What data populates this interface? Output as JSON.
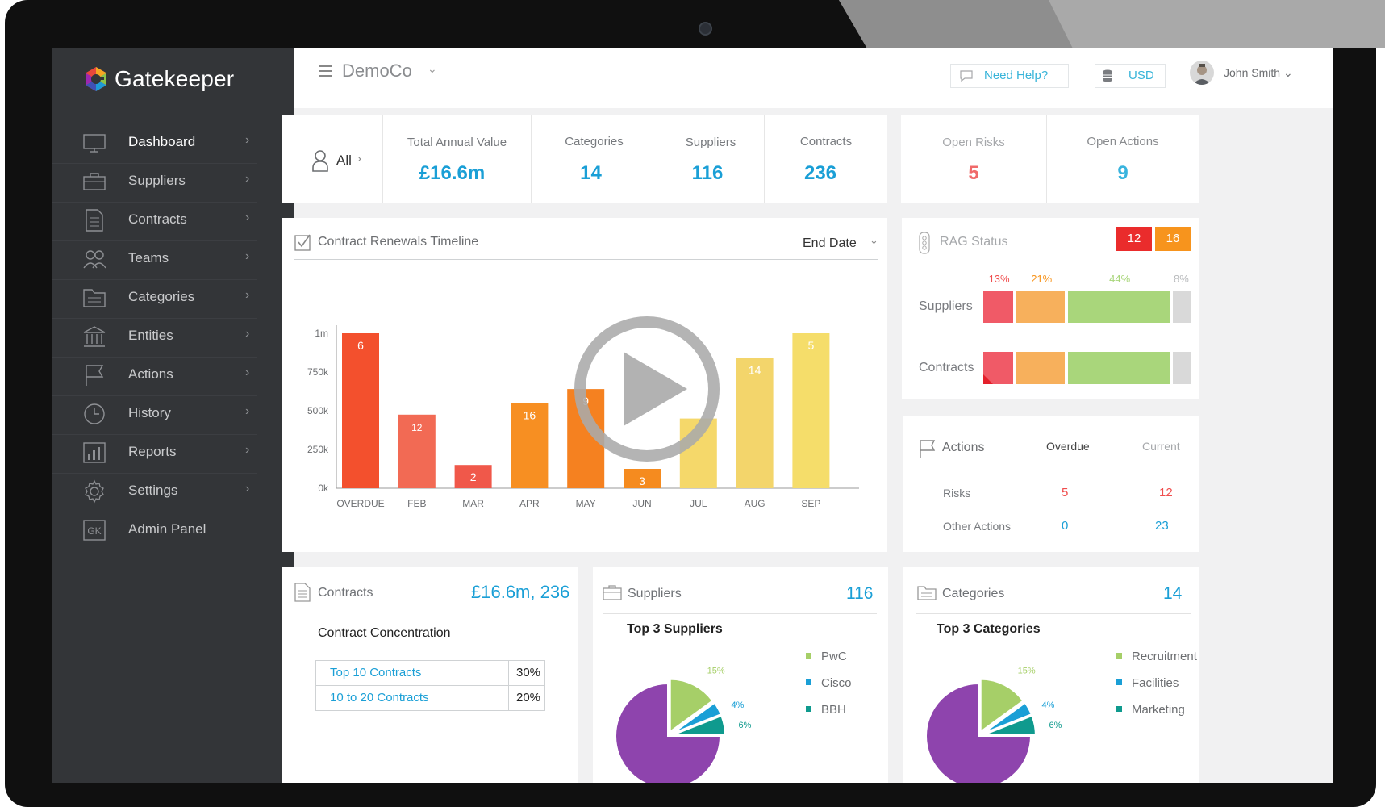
{
  "brand": {
    "name": "Gatekeeper"
  },
  "sidebar": {
    "items": [
      {
        "label": "Dashboard",
        "icon": "monitor-icon",
        "active": true,
        "chevron": "›"
      },
      {
        "label": "Suppliers",
        "icon": "briefcase-icon",
        "chevron": "›"
      },
      {
        "label": "Contracts",
        "icon": "document-icon",
        "chevron": "›"
      },
      {
        "label": "Teams",
        "icon": "users-icon",
        "chevron": "›"
      },
      {
        "label": "Categories",
        "icon": "folder-icon",
        "chevron": "›"
      },
      {
        "label": "Entities",
        "icon": "bank-icon",
        "chevron": "›"
      },
      {
        "label": "Actions",
        "icon": "flag-icon",
        "chevron": "›"
      },
      {
        "label": "History",
        "icon": "clock-icon",
        "chevron": "›"
      },
      {
        "label": "Reports",
        "icon": "bar-chart-icon",
        "chevron": "›"
      },
      {
        "label": "Settings",
        "icon": "gear-icon",
        "chevron": "›"
      },
      {
        "label": "Admin Panel",
        "icon": "gk-badge-icon",
        "badge": "GK"
      }
    ]
  },
  "header": {
    "company": "DemoCo",
    "company_chevron": "⌄",
    "help": "Need Help?",
    "currency": "USD",
    "user": "John Smith",
    "user_chevron": "⌄"
  },
  "stats": {
    "filter": {
      "label": "All",
      "chevron": "›"
    },
    "total_annual_value": {
      "label": "Total Annual Value",
      "value": "£16.6m"
    },
    "categories": {
      "label": "Categories",
      "value": "14"
    },
    "suppliers": {
      "label": "Suppliers",
      "value": "116"
    },
    "contracts": {
      "label": "Contracts",
      "value": "236"
    },
    "open_risks": {
      "label": "Open Risks",
      "value": "5"
    },
    "open_actions": {
      "label": "Open Actions",
      "value": "9"
    }
  },
  "timeline": {
    "title": "Contract Renewals Timeline",
    "sort": "End Date",
    "sort_chevron": "⌄"
  },
  "chart_data": {
    "type": "bar",
    "categories": [
      "OVERDUE",
      "FEB",
      "MAR",
      "APR",
      "MAY",
      "JUN",
      "JUL",
      "AUG",
      "SEP"
    ],
    "values": [
      1000000,
      475000,
      150000,
      550000,
      640000,
      125000,
      450000,
      840000,
      1000000
    ],
    "data_labels": [
      "6",
      "12",
      "2",
      "16",
      "9",
      "3",
      "",
      "14",
      "5"
    ],
    "colors": [
      "#f3502d",
      "#f26a54",
      "#f0584a",
      "#f78f22",
      "#f58120",
      "#f58b1f",
      "#f5d86a",
      "#f3d56b",
      "#f5dd6a"
    ],
    "yticks": [
      "0k",
      "250k",
      "500k",
      "750k",
      "1m"
    ],
    "ytick_values": [
      0,
      250000,
      500000,
      750000,
      1000000
    ],
    "ylim": [
      0,
      1000000
    ],
    "grid": false
  },
  "rag": {
    "title": "RAG Status",
    "badge_red": "12",
    "badge_amber": "16",
    "rows": [
      {
        "label": "Suppliers",
        "segments": [
          0.13,
          0.21,
          0.44,
          0.08
        ],
        "pct_labels": [
          "13%",
          "21%",
          "44%",
          "8%"
        ]
      },
      {
        "label": "Contracts",
        "segments": [
          0.13,
          0.21,
          0.34,
          0.06
        ]
      }
    ],
    "colors": [
      "#f05a67",
      "#f7b05c",
      "#a9d67b",
      "#d9d9d9"
    ]
  },
  "actions_card": {
    "title": "Actions",
    "col_overdue": "Overdue",
    "col_current": "Current",
    "rows": [
      {
        "label": "Risks",
        "overdue": "5",
        "current": "12"
      },
      {
        "label": "Other Actions",
        "overdue": "0",
        "current": "23"
      }
    ]
  },
  "contracts_card": {
    "title": "Contracts",
    "summary": "£16.6m, 236",
    "subtitle": "Contract Concentration",
    "rows": [
      {
        "label": "Top 10 Contracts",
        "value": "30%"
      },
      {
        "label": "10 to 20 Contracts",
        "value": "20%"
      }
    ]
  },
  "suppliers_card": {
    "title": "Suppliers",
    "count": "116",
    "subtitle": "Top 3 Suppliers",
    "legend": [
      "PwC",
      "Cisco",
      "BBH"
    ],
    "pct": [
      "15%",
      "4%",
      "6%"
    ]
  },
  "categories_card": {
    "title": "Categories",
    "count": "14",
    "subtitle": "Top 3 Categories",
    "legend": [
      "Recruitment",
      "Facilities",
      "Marketing"
    ],
    "pct": [
      "15%",
      "4%",
      "6%"
    ]
  },
  "pie_colors": [
    "#a6cf68",
    "#1a9fd6",
    "#0f9a8e",
    "#8e44ad"
  ]
}
